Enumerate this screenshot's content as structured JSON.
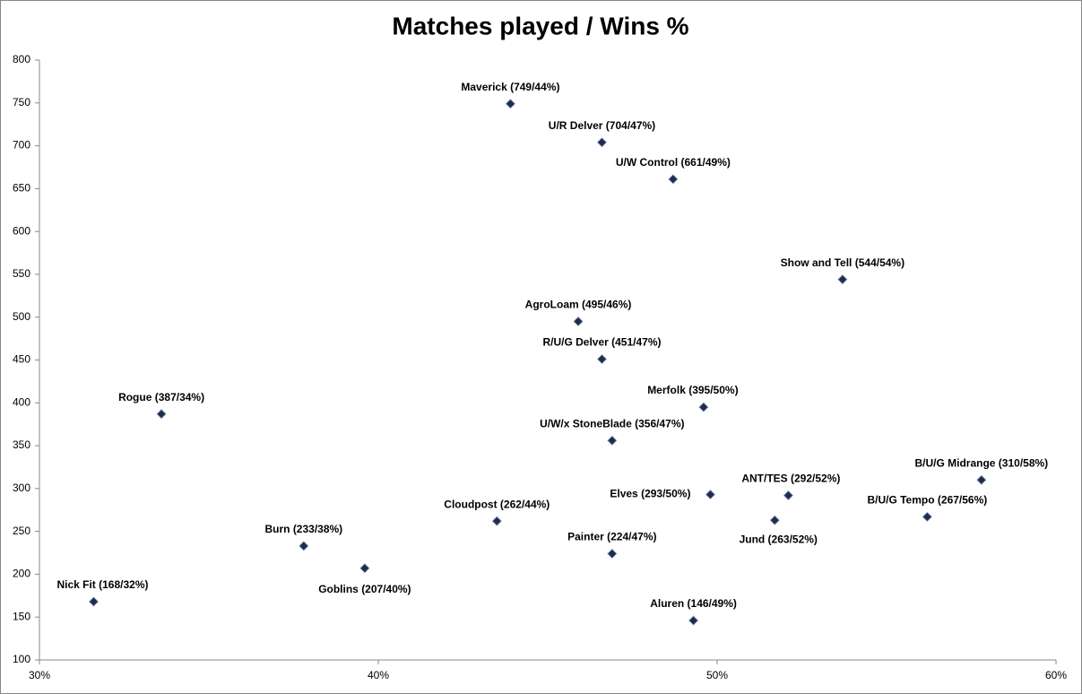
{
  "chart_data": {
    "type": "scatter",
    "title": "Matches played / Wins %",
    "series": [
      {
        "color": "#1f2d4a",
        "x": [
          43.9,
          46.6,
          48.7,
          53.7,
          45.9,
          46.6,
          49.6,
          33.6,
          46.9,
          57.8,
          49.8,
          52.1,
          56.2,
          51.7,
          43.5,
          37.8,
          46.9,
          39.6,
          31.6,
          49.3
        ],
        "values": [
          749,
          704,
          661,
          544,
          495,
          451,
          395,
          387,
          356,
          310,
          293,
          292,
          267,
          263,
          262,
          233,
          224,
          207,
          168,
          146
        ],
        "value_labels": [
          "Maverick (749/44%)",
          "U/R Delver (704/47%)",
          "U/W Control (661/49%)",
          "Show and Tell (544/54%)",
          "AgroLoam (495/46%)",
          "R/U/G Delver (451/47%)",
          "Merfolk (395/50%)",
          "Rogue (387/34%)",
          "U/W/x StoneBlade (356/47%)",
          "B/U/G Midrange (310/58%)",
          "Elves (293/50%)",
          "ANT/TES (292/52%)",
          "B/U/G Tempo (267/56%)",
          "Jund (263/52%)",
          "Cloudpost (262/44%)",
          "Burn (233/38%)",
          "Painter (224/47%)",
          "Goblins (207/40%)",
          "Nick Fit (168/32%)",
          "Aluren (146/49%)"
        ]
      }
    ],
    "xlim": [
      30,
      60
    ],
    "xticks": [
      {
        "value": 30,
        "label": "30%"
      },
      {
        "value": 40,
        "label": "40%"
      },
      {
        "value": 50,
        "label": "50%"
      },
      {
        "value": 60,
        "label": "60%"
      }
    ],
    "ylim": [
      100,
      800
    ],
    "yticks": [
      100,
      150,
      200,
      250,
      300,
      350,
      400,
      450,
      500,
      550,
      600,
      650,
      700,
      750,
      800
    ],
    "grid": false
  }
}
